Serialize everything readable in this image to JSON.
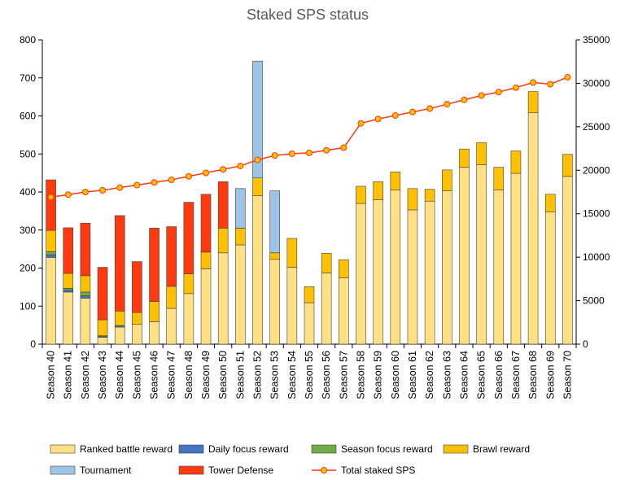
{
  "chart_data": {
    "type": "bar",
    "stacked": true,
    "title": "Staked SPS status",
    "xlabel": "",
    "ylabel": "",
    "ylim": [
      0,
      800
    ],
    "y2lim": [
      0,
      35000
    ],
    "yticks": [
      0,
      100,
      200,
      300,
      400,
      500,
      600,
      700,
      800
    ],
    "y2ticks": [
      0,
      5000,
      10000,
      15000,
      20000,
      25000,
      30000,
      35000
    ],
    "grid": false,
    "legend_position": "bottom",
    "categories": [
      "Season 40",
      "Season 41",
      "Season 42",
      "Season 43",
      "Season 44",
      "Season 45",
      "Season 46",
      "Season 47",
      "Season 48",
      "Season 49",
      "Season 50",
      "Season 51",
      "Season 52",
      "Season 53",
      "Season 54",
      "Season 55",
      "Season 56",
      "Season 57",
      "Season 58",
      "Season 59",
      "Season 60",
      "Season 61",
      "Season 62",
      "Season 63",
      "Season 64",
      "Season 65",
      "Season 66",
      "Season 67",
      "Season 68",
      "Season 69",
      "Season 70"
    ],
    "series": [
      {
        "name": "Ranked battle reward",
        "color": "#FFE083",
        "values": [
          228,
          137,
          121,
          18,
          45,
          52,
          59,
          94,
          133,
          198,
          240,
          261,
          390,
          223,
          202,
          109,
          187,
          174,
          370,
          380,
          405,
          353,
          376,
          403,
          465,
          472,
          405,
          449,
          609,
          348,
          441
        ]
      },
      {
        "name": "Daily focus reward",
        "color": "#4472C4",
        "values": [
          7,
          5,
          6,
          2,
          4,
          0,
          0,
          0,
          0,
          0,
          0,
          0,
          0,
          0,
          0,
          0,
          0,
          0,
          0,
          0,
          0,
          0,
          0,
          0,
          0,
          0,
          0,
          0,
          0,
          0,
          0
        ]
      },
      {
        "name": "Season focus reward",
        "color": "#70AD47",
        "values": [
          8,
          5,
          10,
          2,
          0,
          0,
          0,
          0,
          0,
          0,
          0,
          0,
          0,
          0,
          0,
          0,
          0,
          0,
          0,
          0,
          0,
          0,
          0,
          0,
          0,
          0,
          0,
          0,
          0,
          0,
          0
        ]
      },
      {
        "name": "Brawl reward",
        "color": "#FFC000",
        "values": [
          56,
          39,
          43,
          42,
          38,
          31,
          53,
          58,
          52,
          44,
          65,
          44,
          47,
          17,
          76,
          42,
          52,
          48,
          45,
          47,
          48,
          56,
          31,
          55,
          48,
          58,
          60,
          59,
          55,
          46,
          58
        ]
      },
      {
        "name": "Tournament",
        "color": "#9DC3E6",
        "values": [
          0,
          0,
          0,
          0,
          0,
          0,
          0,
          0,
          0,
          0,
          0,
          104,
          307,
          163,
          0,
          0,
          0,
          0,
          0,
          0,
          0,
          0,
          0,
          0,
          0,
          0,
          0,
          0,
          0,
          0,
          0
        ]
      },
      {
        "name": "Tower Defense",
        "color": "#FF3A0F",
        "values": [
          133,
          120,
          138,
          138,
          251,
          134,
          193,
          157,
          188,
          152,
          122,
          0,
          0,
          0,
          0,
          0,
          0,
          0,
          0,
          0,
          0,
          0,
          0,
          0,
          0,
          0,
          0,
          0,
          0,
          0,
          0
        ]
      }
    ],
    "line_series": {
      "name": "Total staked SPS",
      "axis": "right",
      "color": "#FF3A0F",
      "marker_color": "#FFC000",
      "values": [
        16900,
        17200,
        17500,
        17700,
        18000,
        18300,
        18600,
        18900,
        19300,
        19700,
        20100,
        20500,
        21200,
        21700,
        21900,
        22000,
        22300,
        22600,
        25400,
        25900,
        26300,
        26700,
        27100,
        27600,
        28100,
        28600,
        29000,
        29500,
        30100,
        29900,
        30700
      ]
    }
  }
}
